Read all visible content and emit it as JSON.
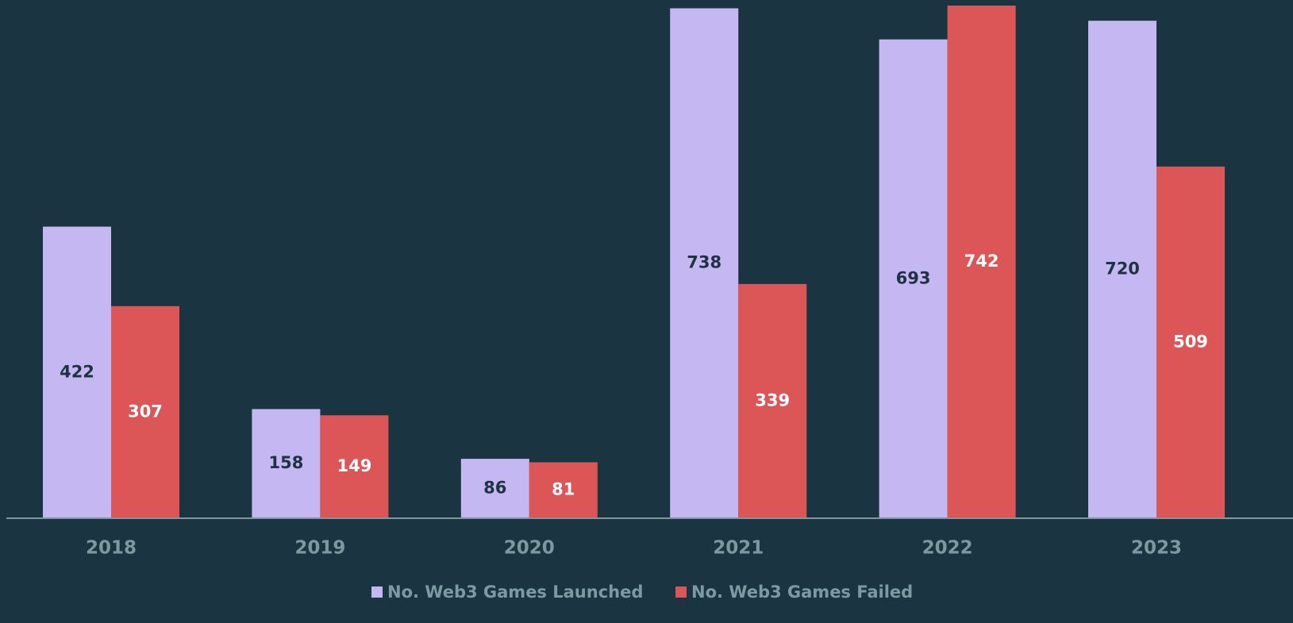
{
  "chart_data": {
    "type": "bar",
    "categories": [
      "2018",
      "2019",
      "2020",
      "2021",
      "2022",
      "2023"
    ],
    "series": [
      {
        "name": "No. Web3 Games Launched",
        "color": "#c5b8f2",
        "values": [
          422,
          158,
          86,
          738,
          693,
          720
        ]
      },
      {
        "name": "No. Web3 Games Failed",
        "color": "#dc5557",
        "values": [
          307,
          149,
          81,
          339,
          742,
          509
        ]
      }
    ]
  }
}
